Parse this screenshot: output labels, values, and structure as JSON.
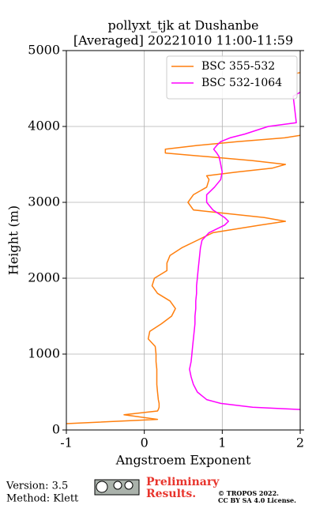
{
  "chart_data": {
    "type": "line",
    "title": "pollyxt_tjk at Dushanbe",
    "subtitle": "[Averaged] 20221010 11:00-11:59",
    "x_label": "Angstroem Exponent",
    "y_label": "Height (m)",
    "xlim": [
      -1,
      2
    ],
    "xticks": [
      -1,
      0,
      1,
      2
    ],
    "ylim": [
      0,
      5000
    ],
    "yticks": [
      0,
      1000,
      2000,
      3000,
      4000,
      5000
    ],
    "grid": true,
    "legend": "upper right",
    "heights": [
      83,
      140,
      200,
      250,
      270,
      300,
      350,
      400,
      500,
      600,
      700,
      800,
      900,
      1000,
      1100,
      1200,
      1300,
      1400,
      1500,
      1600,
      1700,
      1800,
      1900,
      2000,
      2100,
      2200,
      2300,
      2400,
      2500,
      2600,
      2700,
      2750,
      2800,
      2900,
      3000,
      3100,
      3200,
      3300,
      3350,
      3400,
      3450,
      3500,
      3550,
      3600,
      3650,
      3700,
      3750,
      3800,
      3850,
      3900,
      4000,
      4050,
      4400,
      4450,
      4700,
      4720
    ],
    "series": [
      {
        "name": "BSC 355-532",
        "color": "#ff7f0e",
        "values": [
          -1.0,
          0.17,
          -0.26,
          0.17,
          0.18,
          0.19,
          0.19,
          0.18,
          0.17,
          0.16,
          0.16,
          0.16,
          0.15,
          0.15,
          0.14,
          0.05,
          0.07,
          0.22,
          0.35,
          0.4,
          0.33,
          0.17,
          0.1,
          0.13,
          0.29,
          0.29,
          0.33,
          0.48,
          0.68,
          0.88,
          1.49,
          1.81,
          1.54,
          0.63,
          0.56,
          0.63,
          0.8,
          0.83,
          0.8,
          1.19,
          1.64,
          1.81,
          1.39,
          0.83,
          0.27,
          0.27,
          0.68,
          1.19,
          1.8,
          2.1,
          null,
          null,
          null,
          null,
          1.95,
          2.05
        ]
      },
      {
        "name": "BSC 532-1064",
        "color": "#ff00ff",
        "values": [
          null,
          null,
          null,
          null,
          2.0,
          1.39,
          0.98,
          0.8,
          0.68,
          0.63,
          0.6,
          0.58,
          0.6,
          0.61,
          0.62,
          0.63,
          0.64,
          0.65,
          0.65,
          0.66,
          0.66,
          0.67,
          0.67,
          0.68,
          0.69,
          0.7,
          0.71,
          0.72,
          0.74,
          0.83,
          1.03,
          1.08,
          1.03,
          0.88,
          0.8,
          0.8,
          0.9,
          0.98,
          0.99,
          1.0,
          0.99,
          0.98,
          0.97,
          0.96,
          0.93,
          0.89,
          0.93,
          0.98,
          1.1,
          1.29,
          1.59,
          1.95,
          1.91,
          2.0,
          null,
          null
        ]
      }
    ]
  },
  "footer": {
    "version": "Version: 3.5",
    "method": "Method: Klett",
    "notice": [
      "Preliminary",
      "Results."
    ],
    "copyright": "© TROPOS 2022.",
    "license": "CC BY SA 4.0 License."
  }
}
